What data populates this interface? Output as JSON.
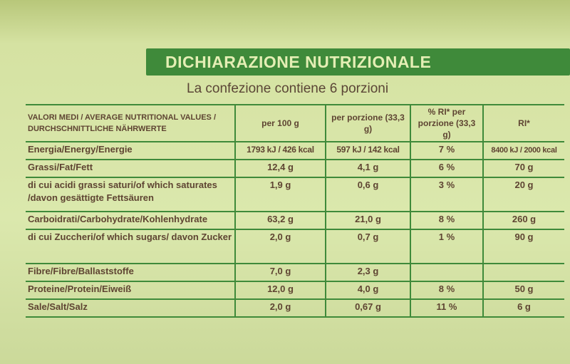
{
  "title": "DICHIARAZIONE NUTRIZIONALE",
  "subtitle": "La confezione contiene 6 porzioni",
  "colors": {
    "banner": "#3f8a3a",
    "text": "#5e4432",
    "background": "#dbe8ad"
  },
  "table": {
    "headers": [
      "VALORI MEDI / AVERAGE NUTRITIONAL VALUES / DURCHSCHNITTLICHE NÄHRWERTE",
      "per 100 g",
      "per porzione (33,3 g)",
      "% RI* per porzione (33,3 g)",
      "RI*"
    ],
    "rows": [
      [
        "Energia/Energy/Energie",
        "1793 kJ / 426 kcal",
        "597 kJ / 142 kcal",
        "7 %",
        "8400 kJ / 2000 kcal"
      ],
      [
        "Grassi/Fat/Fett",
        "12,4 g",
        "4,1 g",
        "6 %",
        "70 g"
      ],
      [
        "di cui acidi grassi saturi/of which saturates /davon gesättigte Fettsäuren",
        "1,9 g",
        "0,6 g",
        "3 %",
        "20 g"
      ],
      [
        "Carboidrati/Carbohydrate/Kohlenhydrate",
        "63,2 g",
        "21,0 g",
        "8 %",
        "260 g"
      ],
      [
        "di cui Zuccheri/of which sugars/ davon Zucker",
        "2,0 g",
        "0,7 g",
        "1 %",
        "90 g"
      ],
      [
        "Fibre/Fibre/Ballaststoffe",
        "7,0 g",
        "2,3 g",
        "",
        ""
      ],
      [
        "Proteine/Protein/Eiweiß",
        "12,0 g",
        "4,0 g",
        "8 %",
        "50 g"
      ],
      [
        "Sale/Salt/Salz",
        "2,0 g",
        "0,67 g",
        "11 %",
        "6 g"
      ]
    ]
  }
}
